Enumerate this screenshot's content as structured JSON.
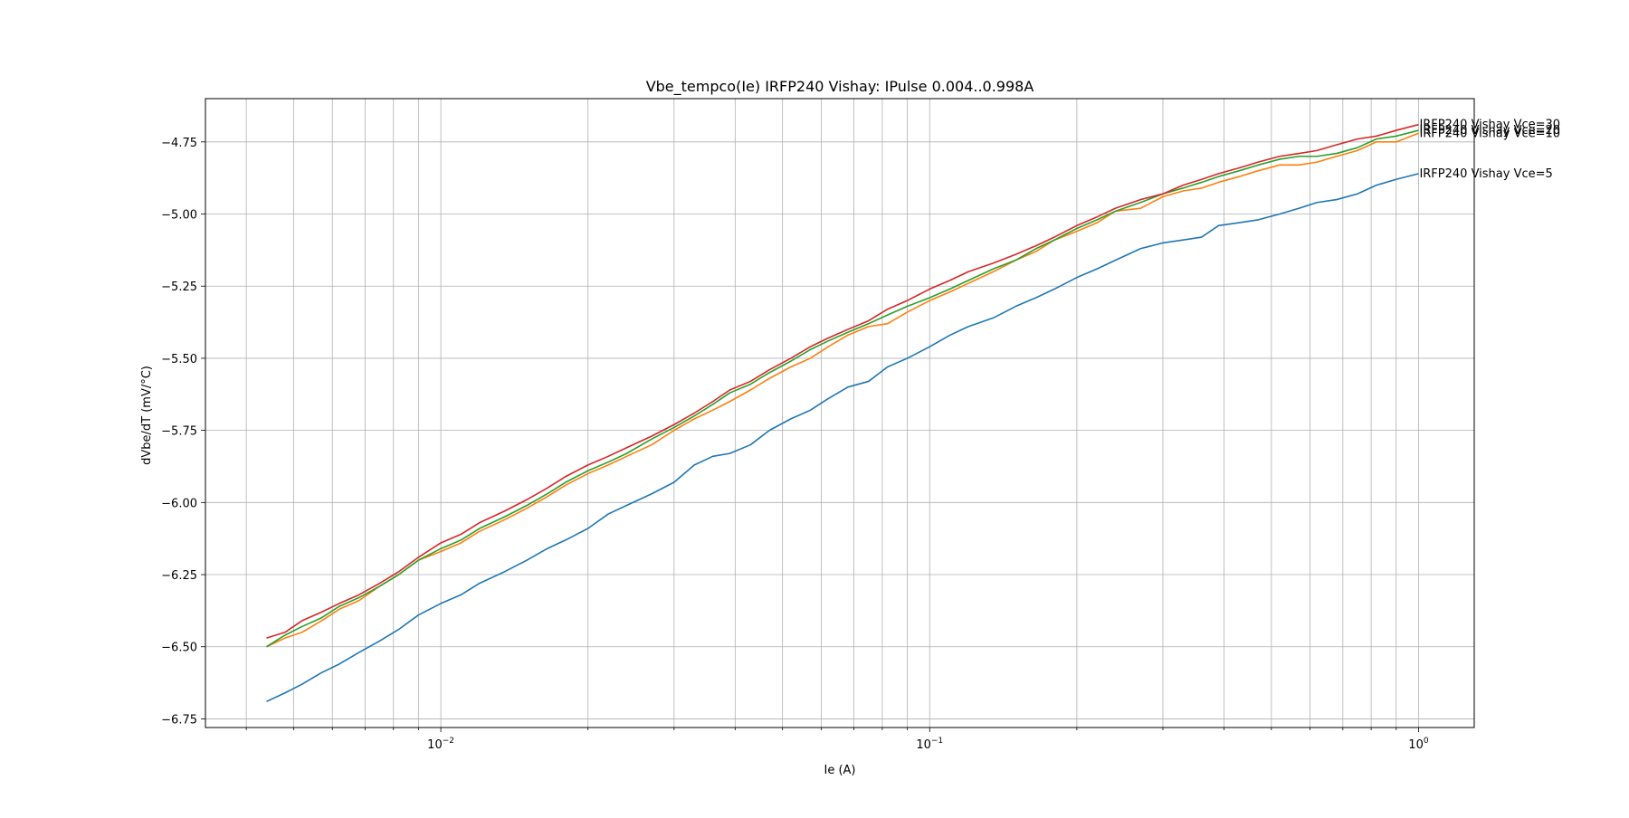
{
  "chart_data": {
    "type": "line",
    "title": "Vbe_tempco(Ie) IRFP240 Vishay: IPulse 0.004..0.998A",
    "xlabel": "Ie (A)",
    "ylabel": "dVbe/dT (mV/°C)",
    "xscale": "log",
    "xlim": [
      0.0033,
      1.3
    ],
    "ylim": [
      -6.78,
      -4.6
    ],
    "x_ticks": [
      {
        "value": 0.01,
        "label_base": "10",
        "label_exp": "−2"
      },
      {
        "value": 0.1,
        "label_base": "10",
        "label_exp": "−1"
      },
      {
        "value": 1,
        "label_base": "10",
        "label_exp": "0"
      }
    ],
    "y_ticks": [
      {
        "value": -4.75,
        "label": "−4.75"
      },
      {
        "value": -5.0,
        "label": "−5.00"
      },
      {
        "value": -5.25,
        "label": "−5.25"
      },
      {
        "value": -5.5,
        "label": "−5.50"
      },
      {
        "value": -5.75,
        "label": "−5.75"
      },
      {
        "value": -6.0,
        "label": "−6.00"
      },
      {
        "value": -6.25,
        "label": "−6.25"
      },
      {
        "value": -6.5,
        "label": "−6.50"
      },
      {
        "value": -6.75,
        "label": "−6.75"
      }
    ],
    "grid": true,
    "legend": "end-of-line labels",
    "series": [
      {
        "name": "IRFP240 Vishay Vce=5",
        "color": "#1f77b4",
        "points": [
          [
            0.0044,
            -6.69
          ],
          [
            0.0048,
            -6.66
          ],
          [
            0.0052,
            -6.63
          ],
          [
            0.0057,
            -6.59
          ],
          [
            0.0062,
            -6.56
          ],
          [
            0.0068,
            -6.52
          ],
          [
            0.0075,
            -6.48
          ],
          [
            0.0082,
            -6.44
          ],
          [
            0.009,
            -6.39
          ],
          [
            0.01,
            -6.35
          ],
          [
            0.011,
            -6.32
          ],
          [
            0.012,
            -6.28
          ],
          [
            0.0135,
            -6.24
          ],
          [
            0.015,
            -6.2
          ],
          [
            0.0165,
            -6.16
          ],
          [
            0.018,
            -6.13
          ],
          [
            0.02,
            -6.09
          ],
          [
            0.022,
            -6.04
          ],
          [
            0.024,
            -6.01
          ],
          [
            0.027,
            -5.97
          ],
          [
            0.03,
            -5.93
          ],
          [
            0.033,
            -5.87
          ],
          [
            0.036,
            -5.84
          ],
          [
            0.039,
            -5.83
          ],
          [
            0.043,
            -5.8
          ],
          [
            0.047,
            -5.75
          ],
          [
            0.052,
            -5.71
          ],
          [
            0.057,
            -5.68
          ],
          [
            0.062,
            -5.64
          ],
          [
            0.068,
            -5.6
          ],
          [
            0.075,
            -5.58
          ],
          [
            0.082,
            -5.53
          ],
          [
            0.09,
            -5.5
          ],
          [
            0.1,
            -5.46
          ],
          [
            0.11,
            -5.42
          ],
          [
            0.12,
            -5.39
          ],
          [
            0.135,
            -5.36
          ],
          [
            0.15,
            -5.32
          ],
          [
            0.165,
            -5.29
          ],
          [
            0.18,
            -5.26
          ],
          [
            0.2,
            -5.22
          ],
          [
            0.22,
            -5.19
          ],
          [
            0.24,
            -5.16
          ],
          [
            0.27,
            -5.12
          ],
          [
            0.3,
            -5.1
          ],
          [
            0.33,
            -5.09
          ],
          [
            0.36,
            -5.08
          ],
          [
            0.39,
            -5.04
          ],
          [
            0.43,
            -5.03
          ],
          [
            0.47,
            -5.02
          ],
          [
            0.52,
            -5.0
          ],
          [
            0.57,
            -4.98
          ],
          [
            0.62,
            -4.96
          ],
          [
            0.68,
            -4.95
          ],
          [
            0.75,
            -4.93
          ],
          [
            0.82,
            -4.9
          ],
          [
            0.9,
            -4.88
          ],
          [
            1.0,
            -4.86
          ]
        ]
      },
      {
        "name": "IRFP240 Vishay Vce=10",
        "color": "#ff7f0e",
        "points": [
          [
            0.0044,
            -6.5
          ],
          [
            0.0048,
            -6.47
          ],
          [
            0.0052,
            -6.45
          ],
          [
            0.0057,
            -6.41
          ],
          [
            0.0062,
            -6.37
          ],
          [
            0.0068,
            -6.34
          ],
          [
            0.0075,
            -6.29
          ],
          [
            0.0082,
            -6.25
          ],
          [
            0.009,
            -6.2
          ],
          [
            0.01,
            -6.17
          ],
          [
            0.011,
            -6.14
          ],
          [
            0.012,
            -6.1
          ],
          [
            0.0135,
            -6.06
          ],
          [
            0.015,
            -6.02
          ],
          [
            0.0165,
            -5.98
          ],
          [
            0.018,
            -5.94
          ],
          [
            0.02,
            -5.9
          ],
          [
            0.022,
            -5.87
          ],
          [
            0.024,
            -5.84
          ],
          [
            0.027,
            -5.8
          ],
          [
            0.03,
            -5.75
          ],
          [
            0.033,
            -5.71
          ],
          [
            0.036,
            -5.68
          ],
          [
            0.039,
            -5.65
          ],
          [
            0.043,
            -5.61
          ],
          [
            0.047,
            -5.57
          ],
          [
            0.052,
            -5.53
          ],
          [
            0.057,
            -5.5
          ],
          [
            0.062,
            -5.46
          ],
          [
            0.068,
            -5.42
          ],
          [
            0.075,
            -5.39
          ],
          [
            0.082,
            -5.38
          ],
          [
            0.09,
            -5.34
          ],
          [
            0.1,
            -5.3
          ],
          [
            0.11,
            -5.27
          ],
          [
            0.12,
            -5.24
          ],
          [
            0.135,
            -5.2
          ],
          [
            0.15,
            -5.16
          ],
          [
            0.165,
            -5.13
          ],
          [
            0.18,
            -5.09
          ],
          [
            0.2,
            -5.06
          ],
          [
            0.22,
            -5.03
          ],
          [
            0.24,
            -4.99
          ],
          [
            0.27,
            -4.98
          ],
          [
            0.3,
            -4.94
          ],
          [
            0.33,
            -4.92
          ],
          [
            0.36,
            -4.91
          ],
          [
            0.39,
            -4.89
          ],
          [
            0.43,
            -4.87
          ],
          [
            0.47,
            -4.85
          ],
          [
            0.52,
            -4.83
          ],
          [
            0.57,
            -4.83
          ],
          [
            0.62,
            -4.82
          ],
          [
            0.68,
            -4.8
          ],
          [
            0.75,
            -4.78
          ],
          [
            0.82,
            -4.75
          ],
          [
            0.9,
            -4.75
          ],
          [
            1.0,
            -4.72
          ]
        ]
      },
      {
        "name": "IRFP240 Vishay Vce=20",
        "color": "#2ca02c",
        "points": [
          [
            0.0044,
            -6.5
          ],
          [
            0.0048,
            -6.46
          ],
          [
            0.0052,
            -6.43
          ],
          [
            0.0057,
            -6.4
          ],
          [
            0.0062,
            -6.36
          ],
          [
            0.0068,
            -6.33
          ],
          [
            0.0075,
            -6.29
          ],
          [
            0.0082,
            -6.25
          ],
          [
            0.009,
            -6.2
          ],
          [
            0.01,
            -6.16
          ],
          [
            0.011,
            -6.13
          ],
          [
            0.012,
            -6.09
          ],
          [
            0.0135,
            -6.05
          ],
          [
            0.015,
            -6.01
          ],
          [
            0.0165,
            -5.97
          ],
          [
            0.018,
            -5.93
          ],
          [
            0.02,
            -5.89
          ],
          [
            0.022,
            -5.86
          ],
          [
            0.024,
            -5.83
          ],
          [
            0.027,
            -5.78
          ],
          [
            0.03,
            -5.74
          ],
          [
            0.033,
            -5.7
          ],
          [
            0.036,
            -5.66
          ],
          [
            0.039,
            -5.62
          ],
          [
            0.043,
            -5.59
          ],
          [
            0.047,
            -5.55
          ],
          [
            0.052,
            -5.51
          ],
          [
            0.057,
            -5.47
          ],
          [
            0.062,
            -5.44
          ],
          [
            0.068,
            -5.41
          ],
          [
            0.075,
            -5.38
          ],
          [
            0.082,
            -5.35
          ],
          [
            0.09,
            -5.32
          ],
          [
            0.1,
            -5.29
          ],
          [
            0.11,
            -5.26
          ],
          [
            0.12,
            -5.23
          ],
          [
            0.135,
            -5.19
          ],
          [
            0.15,
            -5.16
          ],
          [
            0.165,
            -5.12
          ],
          [
            0.18,
            -5.09
          ],
          [
            0.2,
            -5.05
          ],
          [
            0.22,
            -5.02
          ],
          [
            0.24,
            -4.99
          ],
          [
            0.27,
            -4.96
          ],
          [
            0.3,
            -4.93
          ],
          [
            0.33,
            -4.91
          ],
          [
            0.36,
            -4.89
          ],
          [
            0.39,
            -4.87
          ],
          [
            0.43,
            -4.85
          ],
          [
            0.47,
            -4.83
          ],
          [
            0.52,
            -4.81
          ],
          [
            0.57,
            -4.8
          ],
          [
            0.62,
            -4.8
          ],
          [
            0.68,
            -4.79
          ],
          [
            0.75,
            -4.77
          ],
          [
            0.82,
            -4.74
          ],
          [
            0.9,
            -4.73
          ],
          [
            1.0,
            -4.71
          ]
        ]
      },
      {
        "name": "IRFP240 Vishay Vce=30",
        "color": "#d62728",
        "points": [
          [
            0.0044,
            -6.47
          ],
          [
            0.0048,
            -6.45
          ],
          [
            0.0052,
            -6.41
          ],
          [
            0.0057,
            -6.38
          ],
          [
            0.0062,
            -6.35
          ],
          [
            0.0068,
            -6.32
          ],
          [
            0.0075,
            -6.28
          ],
          [
            0.0082,
            -6.24
          ],
          [
            0.009,
            -6.19
          ],
          [
            0.01,
            -6.14
          ],
          [
            0.011,
            -6.11
          ],
          [
            0.012,
            -6.07
          ],
          [
            0.0135,
            -6.03
          ],
          [
            0.015,
            -5.99
          ],
          [
            0.0165,
            -5.95
          ],
          [
            0.018,
            -5.91
          ],
          [
            0.02,
            -5.87
          ],
          [
            0.022,
            -5.84
          ],
          [
            0.024,
            -5.81
          ],
          [
            0.027,
            -5.77
          ],
          [
            0.03,
            -5.73
          ],
          [
            0.033,
            -5.69
          ],
          [
            0.036,
            -5.65
          ],
          [
            0.039,
            -5.61
          ],
          [
            0.043,
            -5.58
          ],
          [
            0.047,
            -5.54
          ],
          [
            0.052,
            -5.5
          ],
          [
            0.057,
            -5.46
          ],
          [
            0.062,
            -5.43
          ],
          [
            0.068,
            -5.4
          ],
          [
            0.075,
            -5.37
          ],
          [
            0.082,
            -5.33
          ],
          [
            0.09,
            -5.3
          ],
          [
            0.1,
            -5.26
          ],
          [
            0.11,
            -5.23
          ],
          [
            0.12,
            -5.2
          ],
          [
            0.135,
            -5.17
          ],
          [
            0.15,
            -5.14
          ],
          [
            0.165,
            -5.11
          ],
          [
            0.18,
            -5.08
          ],
          [
            0.2,
            -5.04
          ],
          [
            0.22,
            -5.01
          ],
          [
            0.24,
            -4.98
          ],
          [
            0.27,
            -4.95
          ],
          [
            0.3,
            -4.93
          ],
          [
            0.33,
            -4.9
          ],
          [
            0.36,
            -4.88
          ],
          [
            0.39,
            -4.86
          ],
          [
            0.43,
            -4.84
          ],
          [
            0.47,
            -4.82
          ],
          [
            0.52,
            -4.8
          ],
          [
            0.57,
            -4.79
          ],
          [
            0.62,
            -4.78
          ],
          [
            0.68,
            -4.76
          ],
          [
            0.75,
            -4.74
          ],
          [
            0.82,
            -4.73
          ],
          [
            0.9,
            -4.71
          ],
          [
            1.0,
            -4.69
          ]
        ]
      }
    ]
  }
}
